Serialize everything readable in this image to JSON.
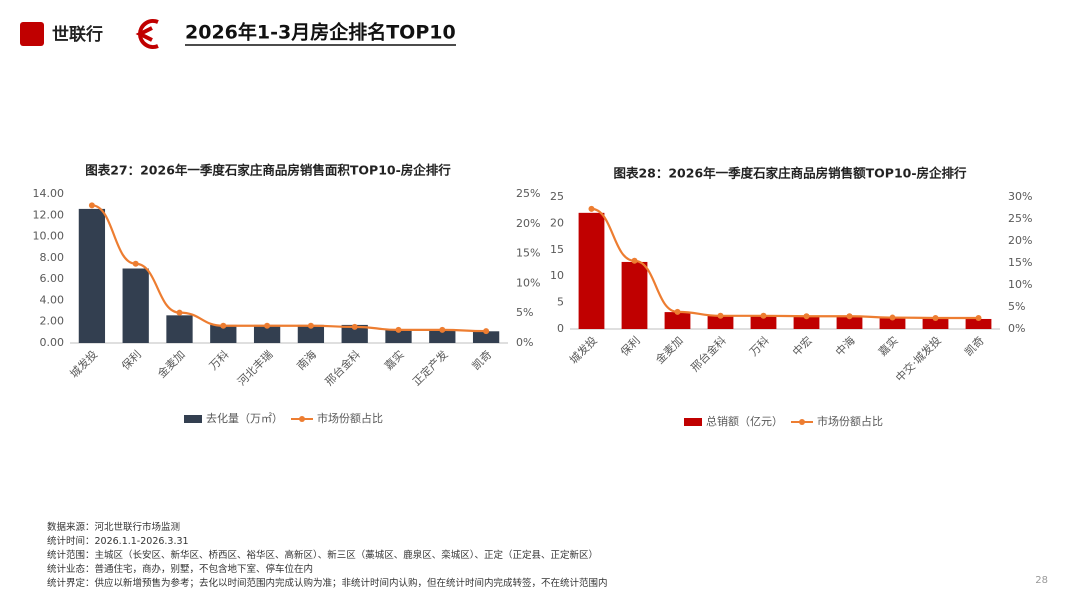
{
  "header": {
    "logo": "世联行",
    "title": "2026年1-3月房企排名TOP10"
  },
  "chart_data": [
    {
      "type": "bar",
      "title": "图表27：2026年一季度石家庄商品房销售面积TOP10-房企排行",
      "categories": [
        "城发投",
        "保利",
        "金麦加",
        "万科",
        "河北丰瑞",
        "南海",
        "邢台金科",
        "嘉实",
        "正定产发",
        "凯奇"
      ],
      "series": [
        {
          "name": "去化量（万㎡）",
          "color": "#333f50",
          "values": [
            12.6,
            7.0,
            2.6,
            1.7,
            1.7,
            1.7,
            1.7,
            1.3,
            1.3,
            1.1
          ]
        },
        {
          "name": "市场份额占比",
          "color": "#ed7d31",
          "type": "line",
          "axis": "y2",
          "values": [
            23.1,
            13.3,
            5.1,
            2.9,
            2.9,
            2.9,
            2.7,
            2.2,
            2.2,
            2.0
          ]
        }
      ],
      "ylim": [
        0,
        14
      ],
      "yticks": [
        {
          "value": 0,
          "label": "0.00"
        },
        {
          "value": 2,
          "label": "2.00"
        },
        {
          "value": 4,
          "label": "4.00"
        },
        {
          "value": 6,
          "label": "6.00"
        },
        {
          "value": 8,
          "label": "8.00"
        },
        {
          "value": 10,
          "label": "10.00"
        },
        {
          "value": 12,
          "label": "12.00"
        },
        {
          "value": 14,
          "label": "14.00"
        }
      ],
      "y2lim": [
        0,
        25
      ],
      "y2ticks": [
        {
          "value": 0,
          "label": "0%"
        },
        {
          "value": 5,
          "label": "5%"
        },
        {
          "value": 10,
          "label": "10%"
        },
        {
          "value": 15,
          "label": "15%"
        },
        {
          "value": 20,
          "label": "20%"
        },
        {
          "value": 25,
          "label": "25%"
        }
      ],
      "legend": "bottom"
    },
    {
      "type": "bar",
      "title": "图表28：2026年一季度石家庄商品房销售额TOP10-房企排行",
      "categories": [
        "城发投",
        "保利",
        "金麦加",
        "邢台金科",
        "万科",
        "中宏",
        "中海",
        "嘉实",
        "中交·城发投",
        "凯奇"
      ],
      "series": [
        {
          "name": "总销额（亿元）",
          "color": "#c00000",
          "values": [
            22.0,
            12.7,
            3.2,
            2.5,
            2.5,
            2.3,
            2.3,
            2.0,
            2.0,
            1.9
          ]
        },
        {
          "name": "市场份额占比",
          "color": "#ed7d31",
          "type": "line",
          "axis": "y2",
          "values": [
            27.3,
            15.5,
            3.9,
            3.0,
            3.0,
            2.9,
            2.9,
            2.6,
            2.5,
            2.5
          ]
        }
      ],
      "ylim": [
        0,
        25
      ],
      "yticks": [
        0,
        5,
        10,
        15,
        20,
        25
      ],
      "y2lim": [
        0,
        30
      ],
      "y2ticks": [
        {
          "value": 0,
          "label": "0%"
        },
        {
          "value": 5,
          "label": "5%"
        },
        {
          "value": 10,
          "label": "10%"
        },
        {
          "value": 15,
          "label": "15%"
        },
        {
          "value": 20,
          "label": "20%"
        },
        {
          "value": 25,
          "label": "25%"
        },
        {
          "value": 30,
          "label": "30%"
        }
      ],
      "legend": "bottom"
    }
  ],
  "notes": [
    "数据来源：河北世联行市场监测",
    "统计时间：2026.1.1-2026.3.31",
    "统计范围：主城区（长安区、新华区、桥西区、裕华区、高新区）、新三区（藁城区、鹿泉区、栾城区）、正定（正定县、正定新区）",
    "统计业态：普通住宅，商办，别墅，不包含地下室、停车位在内",
    "统计界定：供应以新增预售为参考；去化以时间范围内完成认购为准；非统计时间内认购，但在统计时间内完成转签，不在统计范围内"
  ],
  "page_number": "28"
}
